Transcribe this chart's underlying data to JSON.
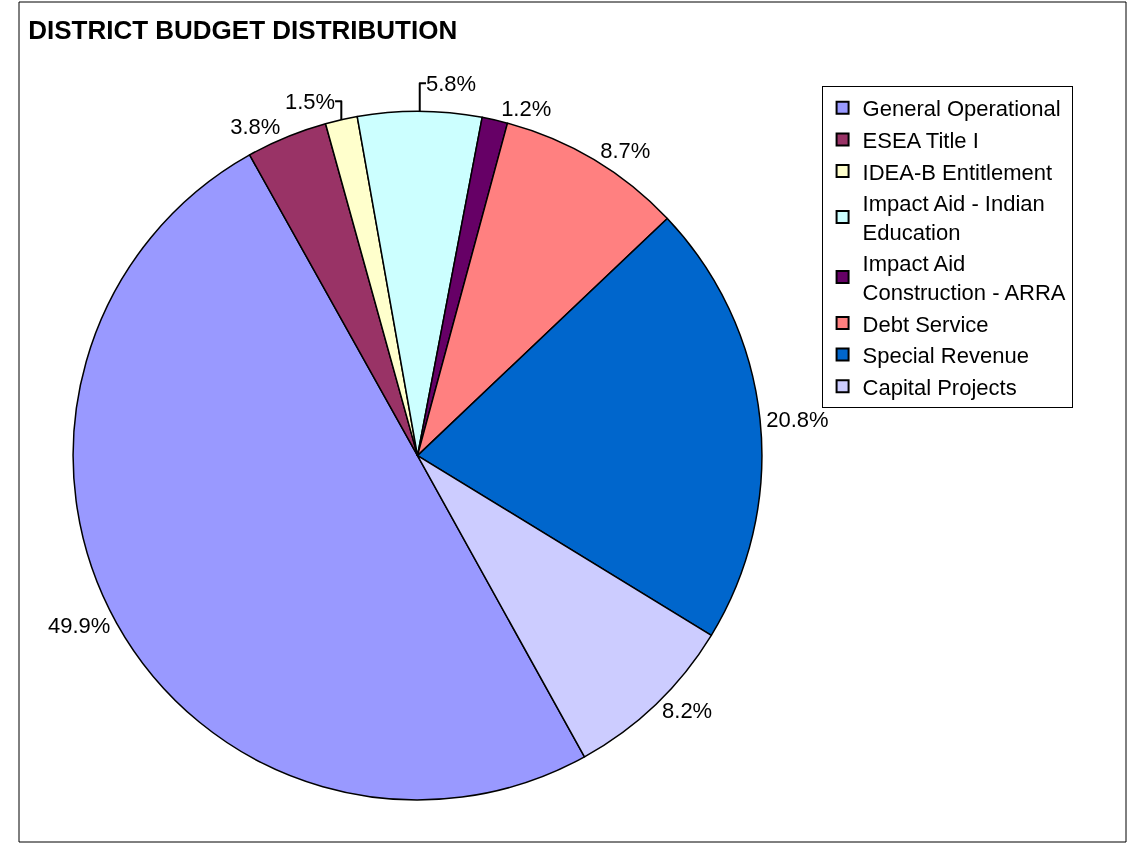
{
  "chart_data": {
    "type": "pie",
    "title": "DISTRICT BUDGET DISTRIBUTION",
    "categories": [
      "General Operational",
      "ESEA Title I",
      "IDEA-B Entitlement",
      "Impact Aid - Indian Education",
      "Impact Aid Construction - ARRA",
      "Debt Service",
      "Special Revenue",
      "Capital Projects"
    ],
    "values": [
      49.9,
      3.8,
      1.5,
      5.8,
      1.2,
      8.7,
      20.8,
      8.2
    ],
    "value_labels": [
      "49.9%",
      "3.8%",
      "1.5%",
      "5.8%",
      "1.2%",
      "8.7%",
      "20.8%",
      "8.2%"
    ],
    "colors": [
      "#9999ff",
      "#993366",
      "#ffffcc",
      "#ccffff",
      "#660066",
      "#ff8080",
      "#0066cc",
      "#ccccff"
    ],
    "legend": "right"
  }
}
